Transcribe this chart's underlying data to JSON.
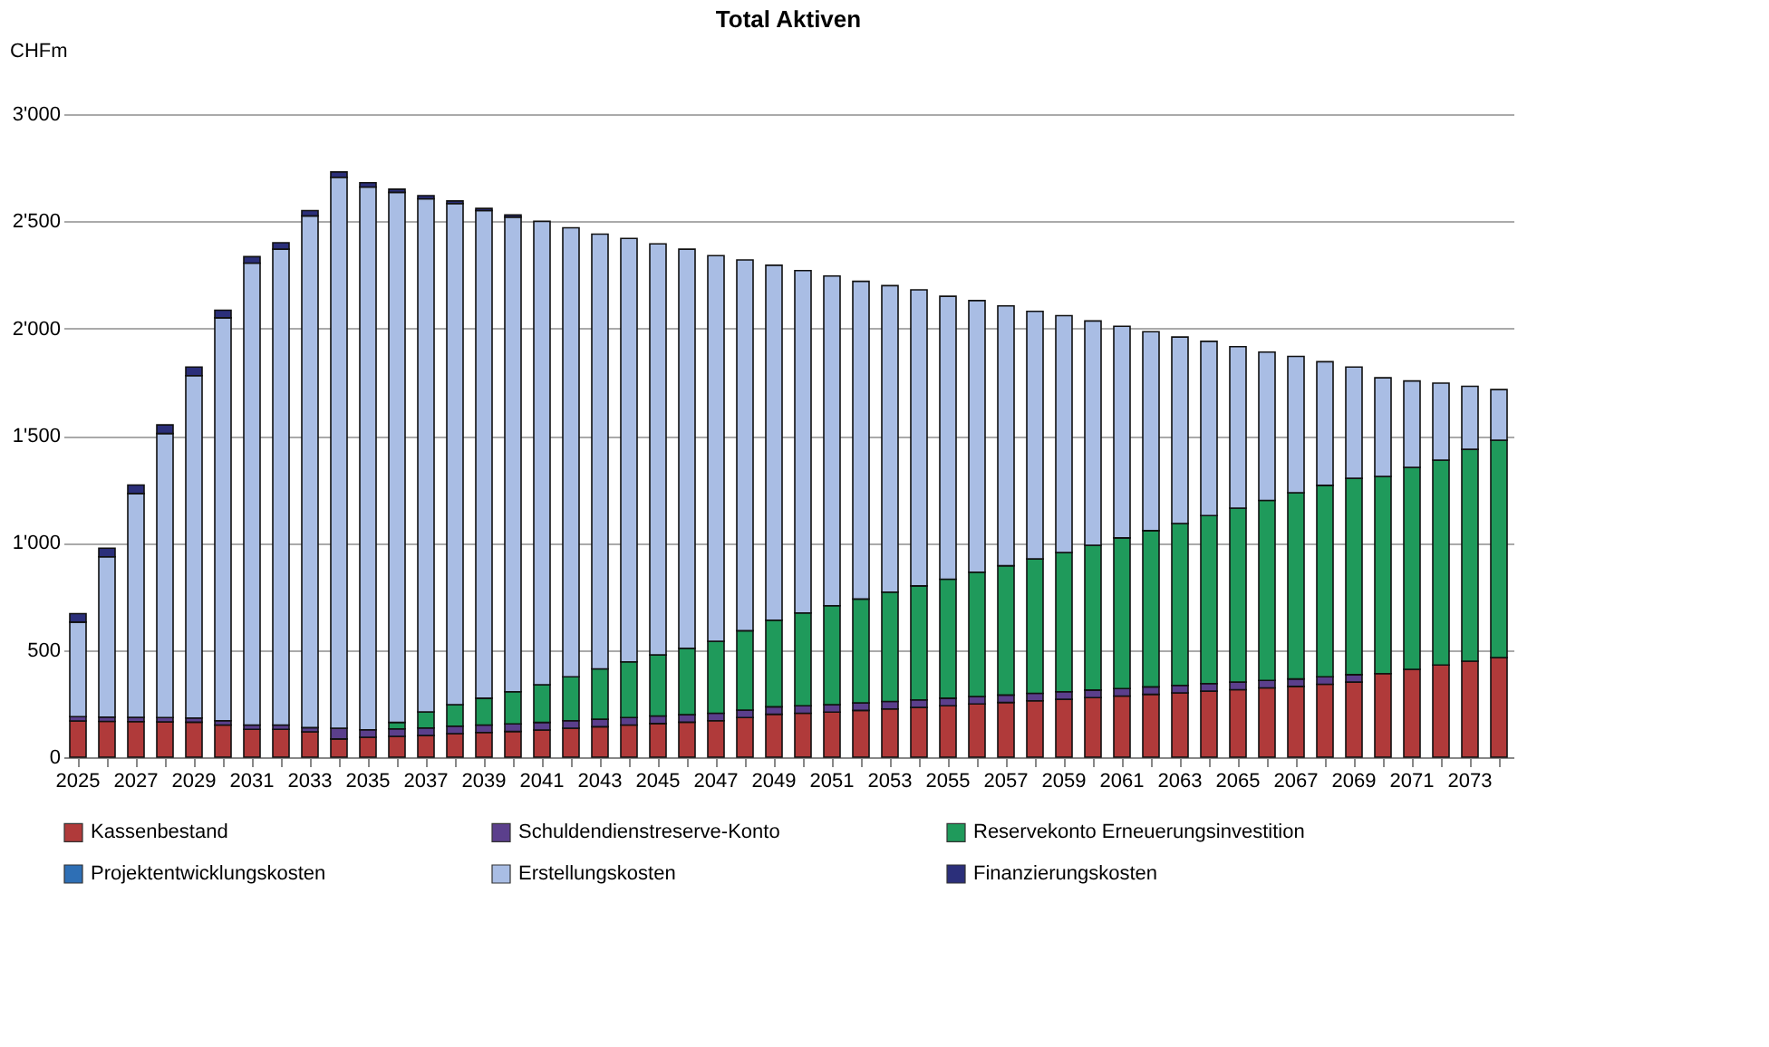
{
  "chart_data": {
    "type": "bar",
    "title": "Total Aktiven",
    "ylabel": "CHFm",
    "stacked": true,
    "grid": "y",
    "legend": "bottom",
    "categories": [
      "2025",
      null,
      "2027",
      null,
      "2029",
      null,
      "2031",
      null,
      "2033",
      null,
      "2035",
      null,
      "2037",
      null,
      "2039",
      null,
      "2041",
      null,
      "2043",
      null,
      "2045",
      null,
      "2047",
      null,
      "2049",
      null,
      "2051",
      null,
      "2053",
      null,
      "2055",
      null,
      "2057",
      null,
      "2059",
      null,
      "2061",
      null,
      "2063",
      null,
      "2065",
      null,
      "2067",
      null,
      "2069",
      null,
      "2071",
      null,
      "2073",
      null
    ],
    "ylim": [
      0,
      3000
    ],
    "yticks": [
      0,
      500,
      {
        "value": 1000,
        "label": "1'000"
      },
      {
        "value": 1500,
        "label": "1'500"
      },
      {
        "value": 2000,
        "label": "2'000"
      },
      {
        "value": 2500,
        "label": "2'500"
      },
      {
        "value": 3000,
        "label": "3'000"
      }
    ],
    "series": [
      {
        "name": "Kassenbestand",
        "color": "#b03a3a",
        "values": [
          169,
          167,
          166,
          165,
          163,
          150,
          130,
          130,
          118,
          85,
          93,
          97,
          101,
          110,
          115,
          120,
          127,
          135,
          142,
          150,
          157,
          163,
          170,
          185,
          200,
          205,
          210,
          218,
          225,
          232,
          240,
          248,
          255,
          263,
          270,
          278,
          285,
          293,
          300,
          308,
          315,
          323,
          330,
          340,
          350,
          390,
          410,
          430,
          448,
          465
        ]
      },
      {
        "name": "Schuldendienstreserve-Konto",
        "color": "#5b3f8c",
        "values": [
          20,
          20,
          20,
          20,
          20,
          20,
          20,
          20,
          20,
          50,
          35,
          35,
          35,
          35,
          35,
          35,
          35,
          35,
          35,
          35,
          35,
          35,
          35,
          35,
          35,
          35,
          35,
          35,
          35,
          35,
          35,
          35,
          35,
          35,
          35,
          35,
          35,
          35,
          35,
          35,
          35,
          35,
          35,
          35,
          35,
          null,
          null,
          null,
          null,
          null
        ]
      },
      {
        "name": "Reservekonto Erneuerungsinvestition",
        "color": "#1f9a5b",
        "values": [
          null,
          null,
          null,
          null,
          null,
          null,
          null,
          null,
          null,
          null,
          null,
          30,
          75,
          100,
          125,
          150,
          176,
          205,
          235,
          260,
          285,
          310,
          336,
          370,
          404,
          433,
          462,
          485,
          510,
          532,
          555,
          580,
          603,
          627,
          650,
          676,
          703,
          729,
          755,
          784,
          812,
          840,
          869,
          893,
          916,
          920,
          942,
          956,
          988,
          1014
        ]
      },
      {
        "name": "Projektentwicklungskosten",
        "color": "#2e6fb5",
        "values": [
          null,
          null,
          null,
          null,
          null,
          null,
          null,
          null,
          null,
          null,
          null,
          null,
          null,
          null,
          null,
          null,
          null,
          null,
          null,
          null,
          null,
          null,
          null,
          null,
          null,
          null,
          null,
          null,
          null,
          null,
          null,
          null,
          null,
          null,
          null,
          null,
          null,
          null,
          null,
          null,
          null,
          null,
          null,
          null,
          null,
          null,
          null,
          null,
          null,
          null
        ]
      },
      {
        "name": "Erstellungskosten",
        "color": "#a9bde4",
        "values": [
          441,
          748,
          1044,
          1325,
          1597,
          1880,
          2155,
          2220,
          2387,
          2570,
          2532,
          2473,
          2394,
          2338,
          2275,
          2215,
          2162,
          2095,
          2028,
          1975,
          1918,
          1862,
          1799,
          1730,
          1656,
          1597,
          1538,
          1482,
          1430,
          1381,
          1320,
          1267,
          1212,
          1155,
          1105,
          1046,
          987,
          928,
          870,
          813,
          753,
          692,
          636,
          577,
          519,
          460,
          403,
          359,
          294,
          236
        ]
      },
      {
        "name": "Finanzierungskosten",
        "color": "#2b2f7a",
        "values": [
          40,
          40,
          40,
          40,
          40,
          35,
          30,
          30,
          25,
          25,
          20,
          15,
          15,
          12,
          10,
          10,
          null,
          null,
          null,
          null,
          null,
          null,
          null,
          null,
          null,
          null,
          null,
          null,
          null,
          null,
          null,
          null,
          null,
          null,
          null,
          null,
          null,
          null,
          null,
          null,
          null,
          null,
          null,
          null,
          null,
          null,
          null,
          null,
          null,
          null
        ]
      }
    ]
  }
}
